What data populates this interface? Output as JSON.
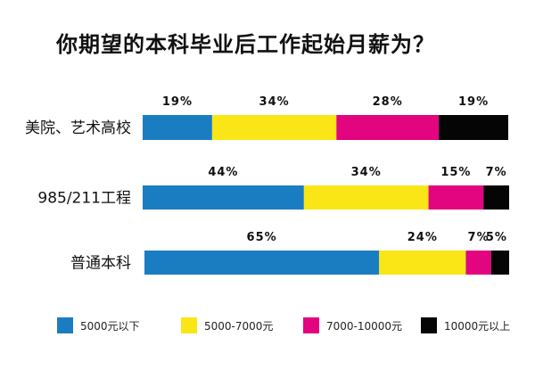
{
  "chart_data": {
    "type": "bar",
    "orientation": "horizontal",
    "stacked": true,
    "normalized": true,
    "title": "你期望的本科毕业后工作起始月薪为？",
    "categories": [
      "美院、艺术高校",
      "985/211工程",
      "普通本科"
    ],
    "series": [
      {
        "name": "5000元以下",
        "color": "#1b7dc1",
        "values": [
          19,
          44,
          65
        ],
        "labels": [
          "19%",
          "44%",
          "65%"
        ]
      },
      {
        "name": "5000-7000元",
        "color": "#fae616",
        "values": [
          34,
          34,
          24
        ],
        "labels": [
          "34%",
          "34%",
          "24%"
        ]
      },
      {
        "name": "7000-10000元",
        "color": "#e3047f",
        "values": [
          28,
          15,
          7
        ],
        "labels": [
          "28%",
          "15%",
          "7%"
        ]
      },
      {
        "name": "10000元以上",
        "color": "#050505",
        "values": [
          19,
          7,
          5
        ],
        "labels": [
          "19%",
          "7%",
          "5%"
        ]
      }
    ],
    "ylim": [
      0,
      100
    ],
    "grid": false,
    "legend_position": "bottom"
  }
}
